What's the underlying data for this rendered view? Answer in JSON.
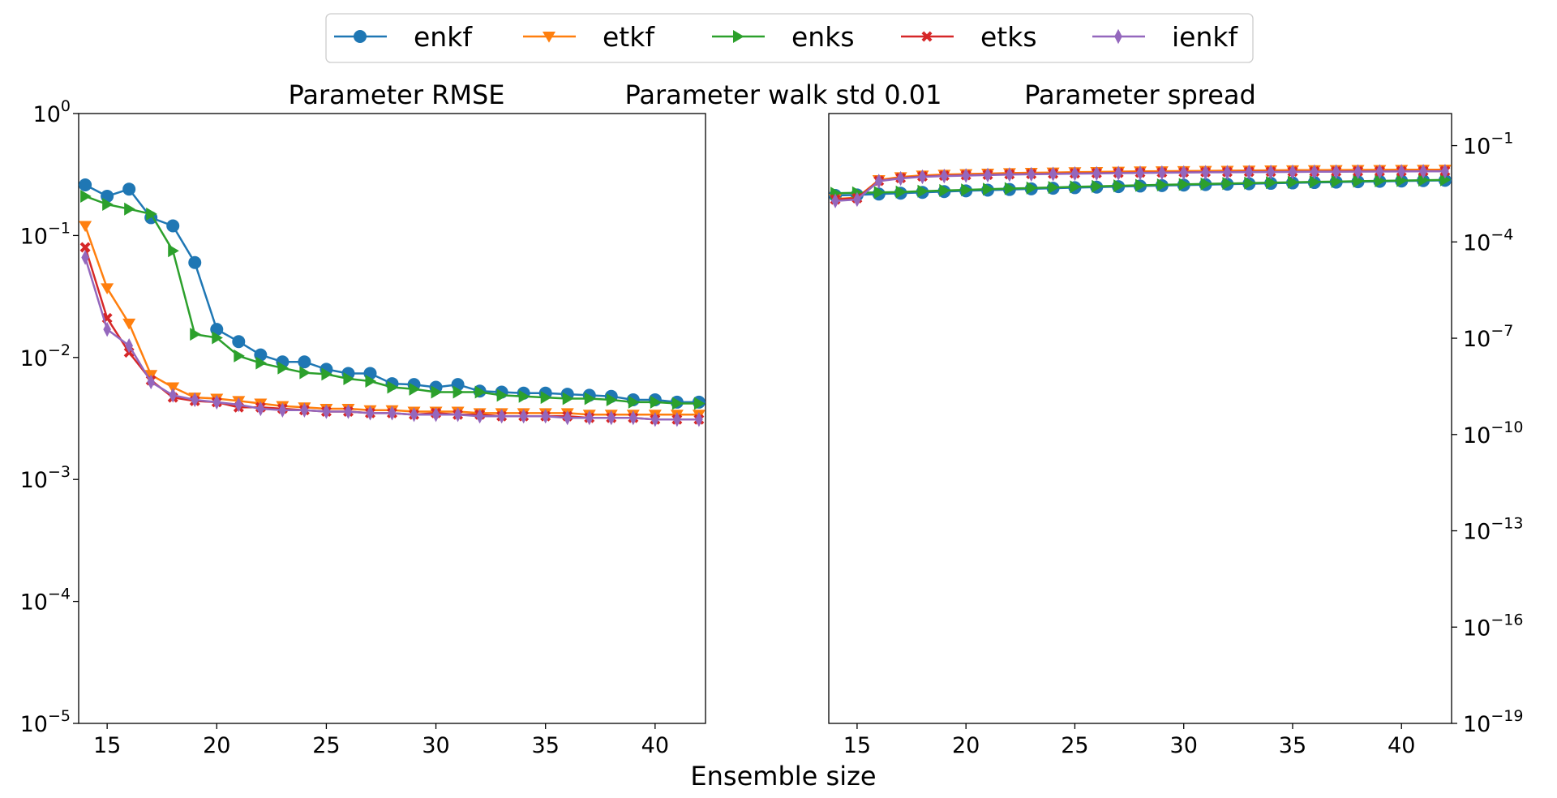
{
  "figure": {
    "suptitle": "Parameter walk std 0.01",
    "xlabel": "Ensemble size"
  },
  "legend": {
    "placement": "top-center",
    "entries": [
      "enkf",
      "etkf",
      "enks",
      "etks",
      "ienkf"
    ]
  },
  "colors": {
    "enkf": "#1f77b4",
    "etkf": "#ff7f0e",
    "enks": "#2ca02c",
    "etks": "#d62728",
    "ienkf": "#9467bd"
  },
  "chart_data": [
    {
      "type": "line",
      "title": "Parameter RMSE",
      "xlabel": "",
      "ylabel": "",
      "yscale": "log",
      "xlim": [
        13.7,
        42.3
      ],
      "ylim": [
        1e-05,
        1
      ],
      "xticks": [
        15,
        20,
        25,
        30,
        35,
        40
      ],
      "yticks": [
        {
          "value": 1e-05,
          "base": "10",
          "exp": "−5"
        },
        {
          "value": 0.0001,
          "base": "10",
          "exp": "−4"
        },
        {
          "value": 0.001,
          "base": "10",
          "exp": "−3"
        },
        {
          "value": 0.01,
          "base": "10",
          "exp": "−2"
        },
        {
          "value": 0.1,
          "base": "10",
          "exp": "−1"
        },
        {
          "value": 1,
          "base": "10",
          "exp": "0"
        }
      ],
      "ytick_side": "left",
      "grid": false,
      "x": [
        14,
        15,
        16,
        17,
        18,
        19,
        20,
        21,
        22,
        23,
        24,
        25,
        26,
        27,
        28,
        29,
        30,
        31,
        32,
        33,
        34,
        35,
        36,
        37,
        38,
        39,
        40,
        41,
        42
      ],
      "series": [
        {
          "name": "enkf",
          "marker": "circle",
          "values": [
            0.26,
            0.21,
            0.24,
            0.14,
            0.12,
            0.06,
            0.017,
            0.0135,
            0.0105,
            0.0092,
            0.0092,
            0.008,
            0.0074,
            0.0074,
            0.0061,
            0.006,
            0.0057,
            0.006,
            0.0053,
            0.0052,
            0.0051,
            0.0051,
            0.005,
            0.0049,
            0.0048,
            0.0045,
            0.0045,
            0.0043,
            0.0043
          ]
        },
        {
          "name": "etkf",
          "marker": "triangle-down",
          "values": [
            0.12,
            0.037,
            0.019,
            0.0072,
            0.0057,
            0.0047,
            0.0046,
            0.0044,
            0.0042,
            0.004,
            0.0039,
            0.0038,
            0.0038,
            0.0037,
            0.0037,
            0.0036,
            0.0036,
            0.0036,
            0.0035,
            0.0035,
            0.0035,
            0.0035,
            0.0035,
            0.0034,
            0.0034,
            0.0034,
            0.0034,
            0.0034,
            0.0034
          ]
        },
        {
          "name": "enks",
          "marker": "triangle-right",
          "values": [
            0.21,
            0.18,
            0.165,
            0.15,
            0.075,
            0.0155,
            0.0145,
            0.0103,
            0.009,
            0.0082,
            0.0075,
            0.0073,
            0.0067,
            0.0064,
            0.0057,
            0.0055,
            0.0052,
            0.0052,
            0.0052,
            0.0049,
            0.0048,
            0.0047,
            0.0046,
            0.0046,
            0.0045,
            0.0043,
            0.0043,
            0.0042,
            0.0042
          ]
        },
        {
          "name": "etks",
          "marker": "x",
          "values": [
            0.08,
            0.021,
            0.011,
            0.0065,
            0.0047,
            0.0044,
            0.0043,
            0.0039,
            0.0039,
            0.0038,
            0.0037,
            0.0036,
            0.0036,
            0.0035,
            0.0035,
            0.0034,
            0.0035,
            0.0034,
            0.0034,
            0.0033,
            0.0033,
            0.0033,
            0.0033,
            0.0032,
            0.0032,
            0.0032,
            0.0031,
            0.0031,
            0.0031
          ]
        },
        {
          "name": "ienkf",
          "marker": "thin-diamond",
          "values": [
            0.066,
            0.017,
            0.0125,
            0.0063,
            0.0049,
            0.0045,
            0.0043,
            0.0041,
            0.0038,
            0.0037,
            0.0037,
            0.0036,
            0.0036,
            0.0035,
            0.0035,
            0.0034,
            0.0034,
            0.0034,
            0.0033,
            0.0033,
            0.0033,
            0.0033,
            0.0032,
            0.0032,
            0.0032,
            0.0032,
            0.0031,
            0.0031,
            0.0031
          ]
        }
      ]
    },
    {
      "type": "line",
      "title": "Parameter spread",
      "xlabel": "",
      "ylabel": "",
      "yscale": "log",
      "xlim": [
        13.7,
        42.3
      ],
      "ylim": [
        1e-19,
        1
      ],
      "xticks": [
        15,
        20,
        25,
        30,
        35,
        40
      ],
      "yticks": [
        {
          "value": 1e-19,
          "base": "10",
          "exp": "−19"
        },
        {
          "value": 1e-16,
          "base": "10",
          "exp": "−16"
        },
        {
          "value": 1e-13,
          "base": "10",
          "exp": "−13"
        },
        {
          "value": 1e-10,
          "base": "10",
          "exp": "−10"
        },
        {
          "value": 1e-07,
          "base": "10",
          "exp": "−7"
        },
        {
          "value": 0.0001,
          "base": "10",
          "exp": "−4"
        },
        {
          "value": 0.1,
          "base": "10",
          "exp": "−1"
        }
      ],
      "ytick_side": "right",
      "grid": false,
      "x": [
        14,
        15,
        16,
        17,
        18,
        19,
        20,
        21,
        22,
        23,
        24,
        25,
        26,
        27,
        28,
        29,
        30,
        31,
        32,
        33,
        34,
        35,
        36,
        37,
        38,
        39,
        40,
        41,
        42
      ],
      "series": [
        {
          "name": "enkf",
          "marker": "circle",
          "values": [
            0.0028,
            0.0029,
            0.0031,
            0.0033,
            0.0035,
            0.0037,
            0.0039,
            0.0041,
            0.0043,
            0.0045,
            0.0047,
            0.0049,
            0.0051,
            0.0053,
            0.0055,
            0.0057,
            0.0059,
            0.0061,
            0.0063,
            0.0065,
            0.0067,
            0.0069,
            0.0071,
            0.0073,
            0.0075,
            0.0077,
            0.0079,
            0.0081,
            0.0083
          ]
        },
        {
          "name": "etkf",
          "marker": "triangle-down",
          "values": [
            0.0022,
            0.0024,
            0.0085,
            0.0105,
            0.0118,
            0.0125,
            0.013,
            0.0135,
            0.014,
            0.0143,
            0.0146,
            0.015,
            0.0152,
            0.0155,
            0.0158,
            0.016,
            0.0162,
            0.0164,
            0.0166,
            0.0168,
            0.017,
            0.0172,
            0.0173,
            0.0174,
            0.0175,
            0.0176,
            0.0177,
            0.0178,
            0.0179
          ]
        },
        {
          "name": "enks",
          "marker": "triangle-right",
          "values": [
            0.0033,
            0.0034,
            0.0035,
            0.0036,
            0.0038,
            0.004,
            0.0042,
            0.0044,
            0.0046,
            0.0048,
            0.005,
            0.0052,
            0.0054,
            0.0056,
            0.0058,
            0.006,
            0.0062,
            0.0064,
            0.0066,
            0.0068,
            0.007,
            0.0072,
            0.0074,
            0.0076,
            0.0078,
            0.008,
            0.0082,
            0.0084,
            0.0086
          ]
        },
        {
          "name": "etks",
          "marker": "x",
          "values": [
            0.0021,
            0.0023,
            0.008,
            0.0098,
            0.011,
            0.0116,
            0.012,
            0.0124,
            0.0128,
            0.0131,
            0.0134,
            0.0137,
            0.0139,
            0.0142,
            0.0144,
            0.0146,
            0.0148,
            0.015,
            0.0151,
            0.0153,
            0.0154,
            0.0155,
            0.0156,
            0.0157,
            0.0158,
            0.0159,
            0.016,
            0.0161,
            0.0162
          ]
        },
        {
          "name": "ienkf",
          "marker": "thin-diamond",
          "values": [
            0.0019,
            0.0021,
            0.0078,
            0.0095,
            0.0107,
            0.0113,
            0.0117,
            0.0121,
            0.0125,
            0.0128,
            0.0131,
            0.0134,
            0.0136,
            0.0139,
            0.0141,
            0.0143,
            0.0145,
            0.0147,
            0.0148,
            0.015,
            0.0151,
            0.0152,
            0.0153,
            0.0154,
            0.0155,
            0.0156,
            0.0157,
            0.0158,
            0.0159
          ]
        }
      ]
    }
  ]
}
